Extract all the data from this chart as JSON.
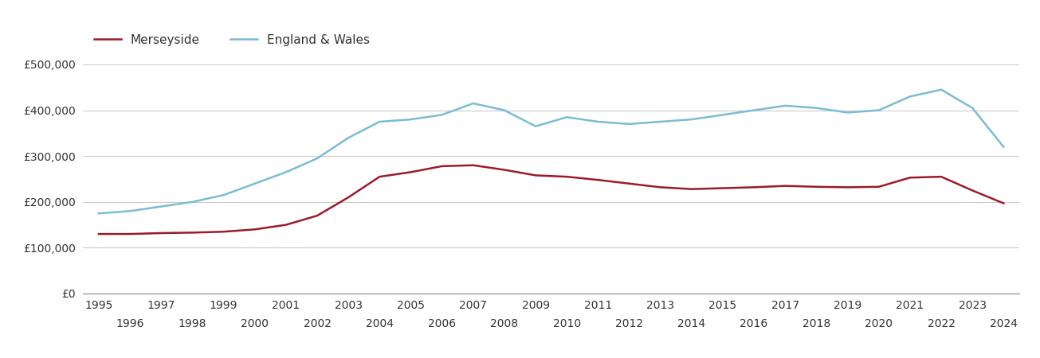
{
  "merseyside": {
    "years": [
      1995,
      1996,
      1997,
      1998,
      1999,
      2000,
      2001,
      2002,
      2003,
      2004,
      2005,
      2006,
      2007,
      2008,
      2009,
      2010,
      2011,
      2012,
      2013,
      2014,
      2015,
      2016,
      2017,
      2018,
      2019,
      2020,
      2021,
      2022,
      2023,
      2024
    ],
    "values": [
      130000,
      130000,
      132000,
      133000,
      135000,
      140000,
      150000,
      170000,
      210000,
      255000,
      265000,
      278000,
      280000,
      270000,
      258000,
      255000,
      248000,
      240000,
      232000,
      228000,
      230000,
      232000,
      235000,
      233000,
      232000,
      233000,
      253000,
      255000,
      225000,
      197000
    ]
  },
  "england_wales": {
    "years": [
      1995,
      1996,
      1997,
      1998,
      1999,
      2000,
      2001,
      2002,
      2003,
      2004,
      2005,
      2006,
      2007,
      2008,
      2009,
      2010,
      2011,
      2012,
      2013,
      2014,
      2015,
      2016,
      2017,
      2018,
      2019,
      2020,
      2021,
      2022,
      2023,
      2024
    ],
    "values": [
      175000,
      180000,
      190000,
      200000,
      215000,
      240000,
      265000,
      295000,
      340000,
      375000,
      380000,
      390000,
      415000,
      400000,
      365000,
      385000,
      375000,
      370000,
      375000,
      380000,
      390000,
      400000,
      410000,
      405000,
      395000,
      400000,
      430000,
      445000,
      405000,
      320000
    ]
  },
  "merseyside_color": "#9b1b2a",
  "england_wales_color": "#7bbcd5",
  "background_color": "#ffffff",
  "grid_color": "#cccccc",
  "ylim": [
    0,
    500000
  ],
  "yticks": [
    0,
    100000,
    200000,
    300000,
    400000,
    500000
  ],
  "ytick_labels": [
    "£0",
    "£100,000",
    "£200,000",
    "£300,000",
    "£400,000",
    "£500,000"
  ],
  "xticks_odd": [
    1995,
    1997,
    1999,
    2001,
    2003,
    2005,
    2007,
    2009,
    2011,
    2013,
    2015,
    2017,
    2019,
    2021,
    2023
  ],
  "xticks_even": [
    1996,
    1998,
    2000,
    2002,
    2004,
    2006,
    2008,
    2010,
    2012,
    2014,
    2016,
    2018,
    2020,
    2022,
    2024
  ],
  "legend_merseyside": "Merseyside",
  "legend_england_wales": "England & Wales",
  "line_width": 1.8
}
